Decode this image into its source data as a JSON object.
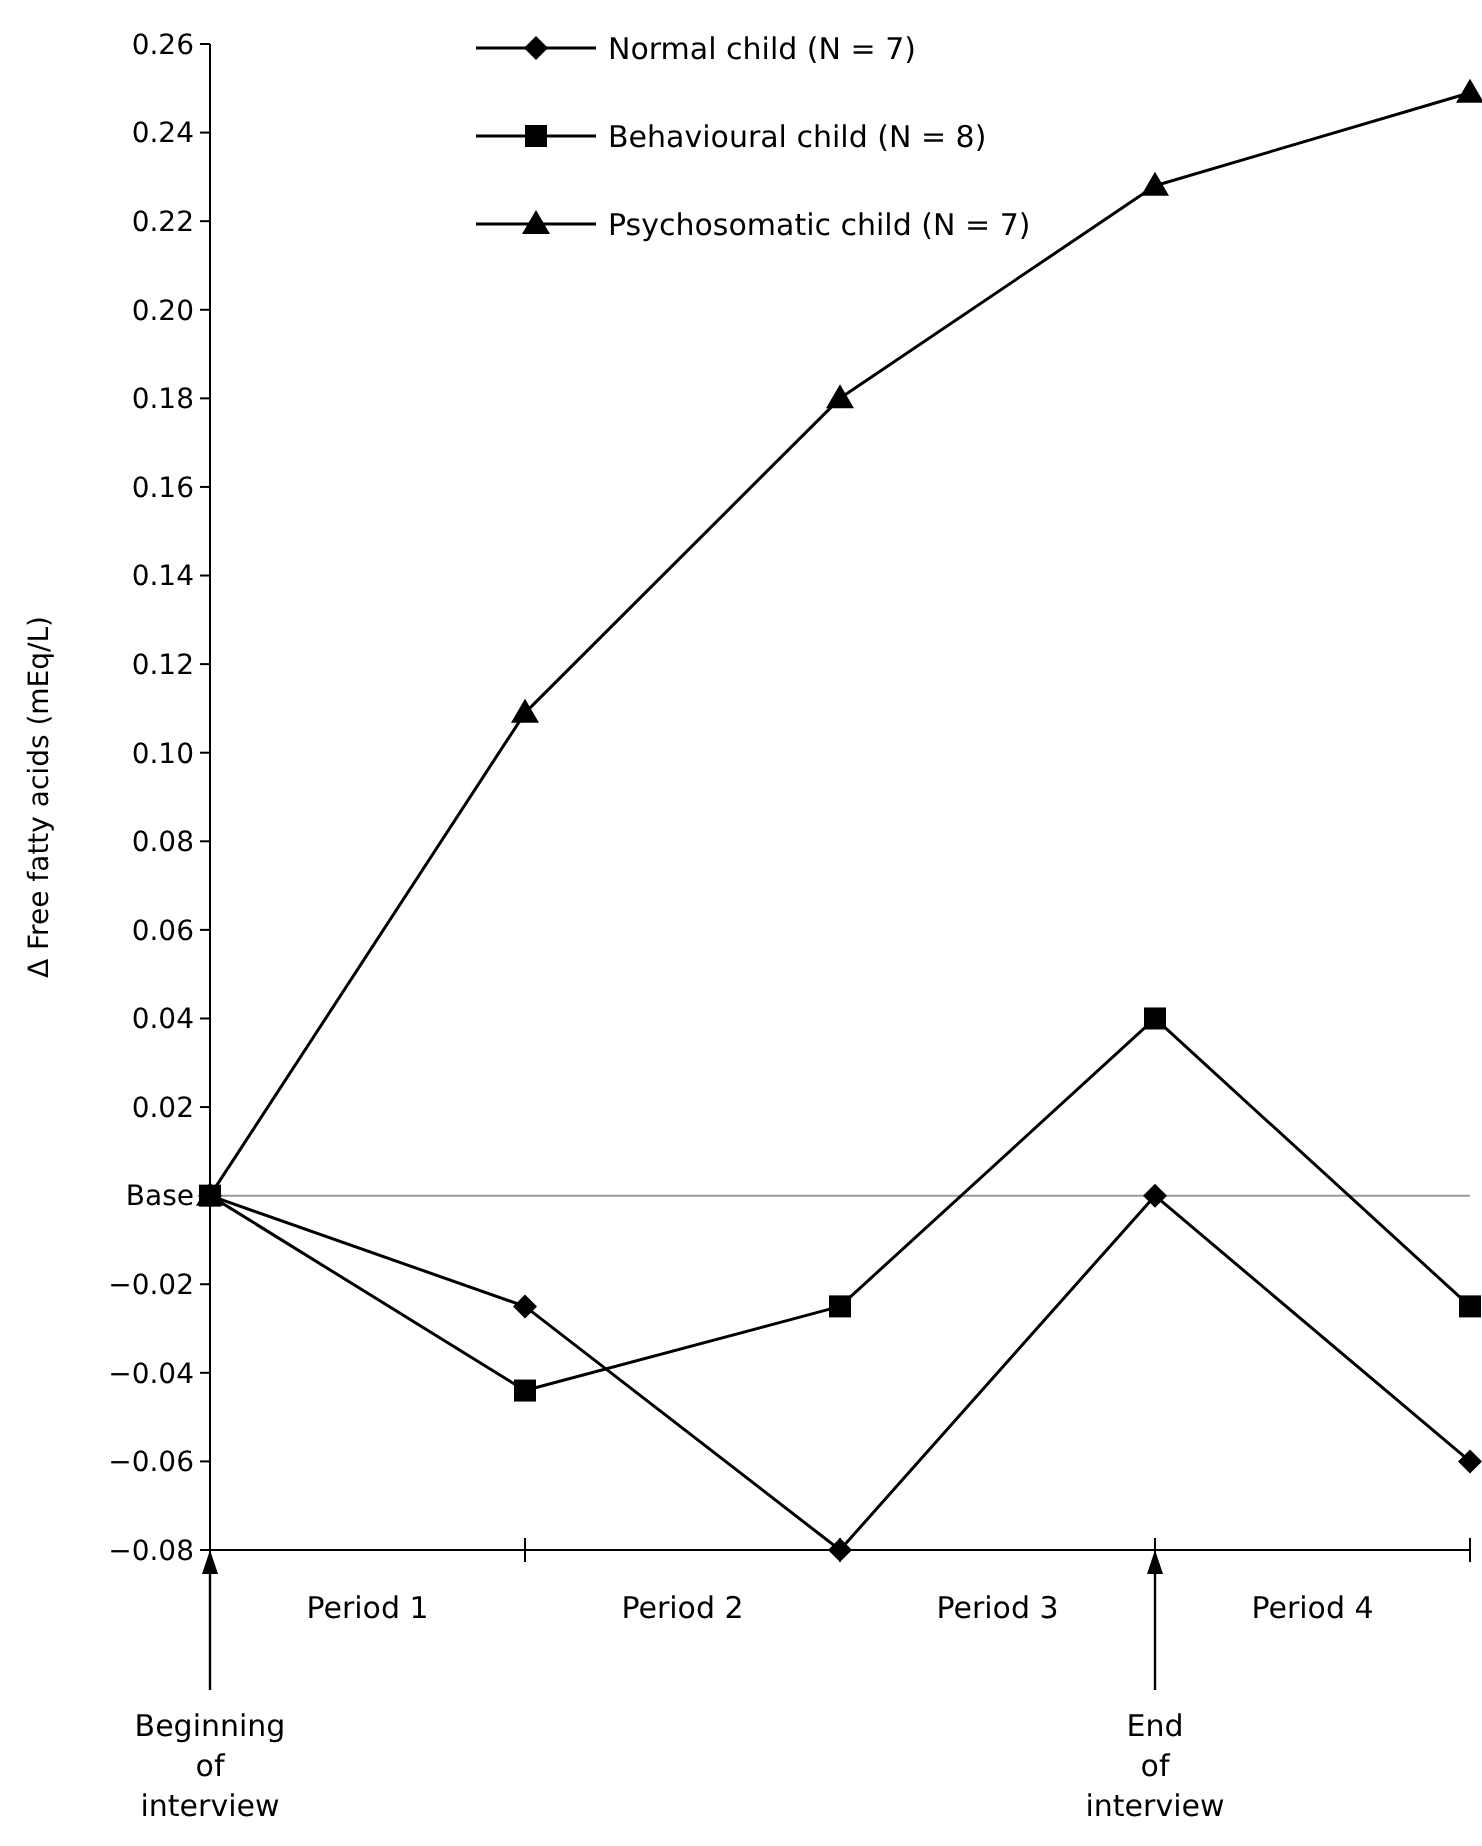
{
  "chart_data": {
    "type": "line",
    "ylabel": "Δ Free fatty acids (mEq/L)",
    "categories": [
      null,
      null,
      null,
      null,
      null
    ],
    "ylim": [
      -0.08,
      0.26
    ],
    "yticks": [
      -0.08,
      -0.06,
      -0.04,
      -0.02,
      {
        "value": 0,
        "label": "Base"
      },
      0.02,
      0.04,
      0.06,
      0.08,
      {
        "value": 0.1,
        "label": "0.10"
      },
      0.12,
      0.14,
      0.16,
      0.18,
      {
        "value": 0.2,
        "label": "0.20"
      },
      0.22,
      0.24,
      0.26
    ],
    "grid": false,
    "legend": "top left",
    "line_style": "solid",
    "ref_lines": [
      {
        "axis": "y",
        "value": 0,
        "color": "#999999"
      }
    ],
    "series": [
      {
        "name": "Normal child (N = 7)",
        "color": "#000000",
        "marker": "diamond",
        "values": [
          0,
          -0.025,
          -0.08,
          0,
          -0.06
        ]
      },
      {
        "name": "Behavioural child (N = 8)",
        "color": "#000000",
        "marker": "square",
        "values": [
          0,
          -0.044,
          -0.025,
          0.04,
          -0.025
        ]
      },
      {
        "name": "Psychosomatic child (N = 7)",
        "color": "#000000",
        "marker": "triangle",
        "values": [
          0,
          0.109,
          0.18,
          0.228,
          0.249
        ]
      }
    ],
    "annotations": [
      "Period 1",
      "Period 2",
      "Period 3",
      "Period 4",
      "Beginning of interview",
      "End of interview"
    ]
  }
}
